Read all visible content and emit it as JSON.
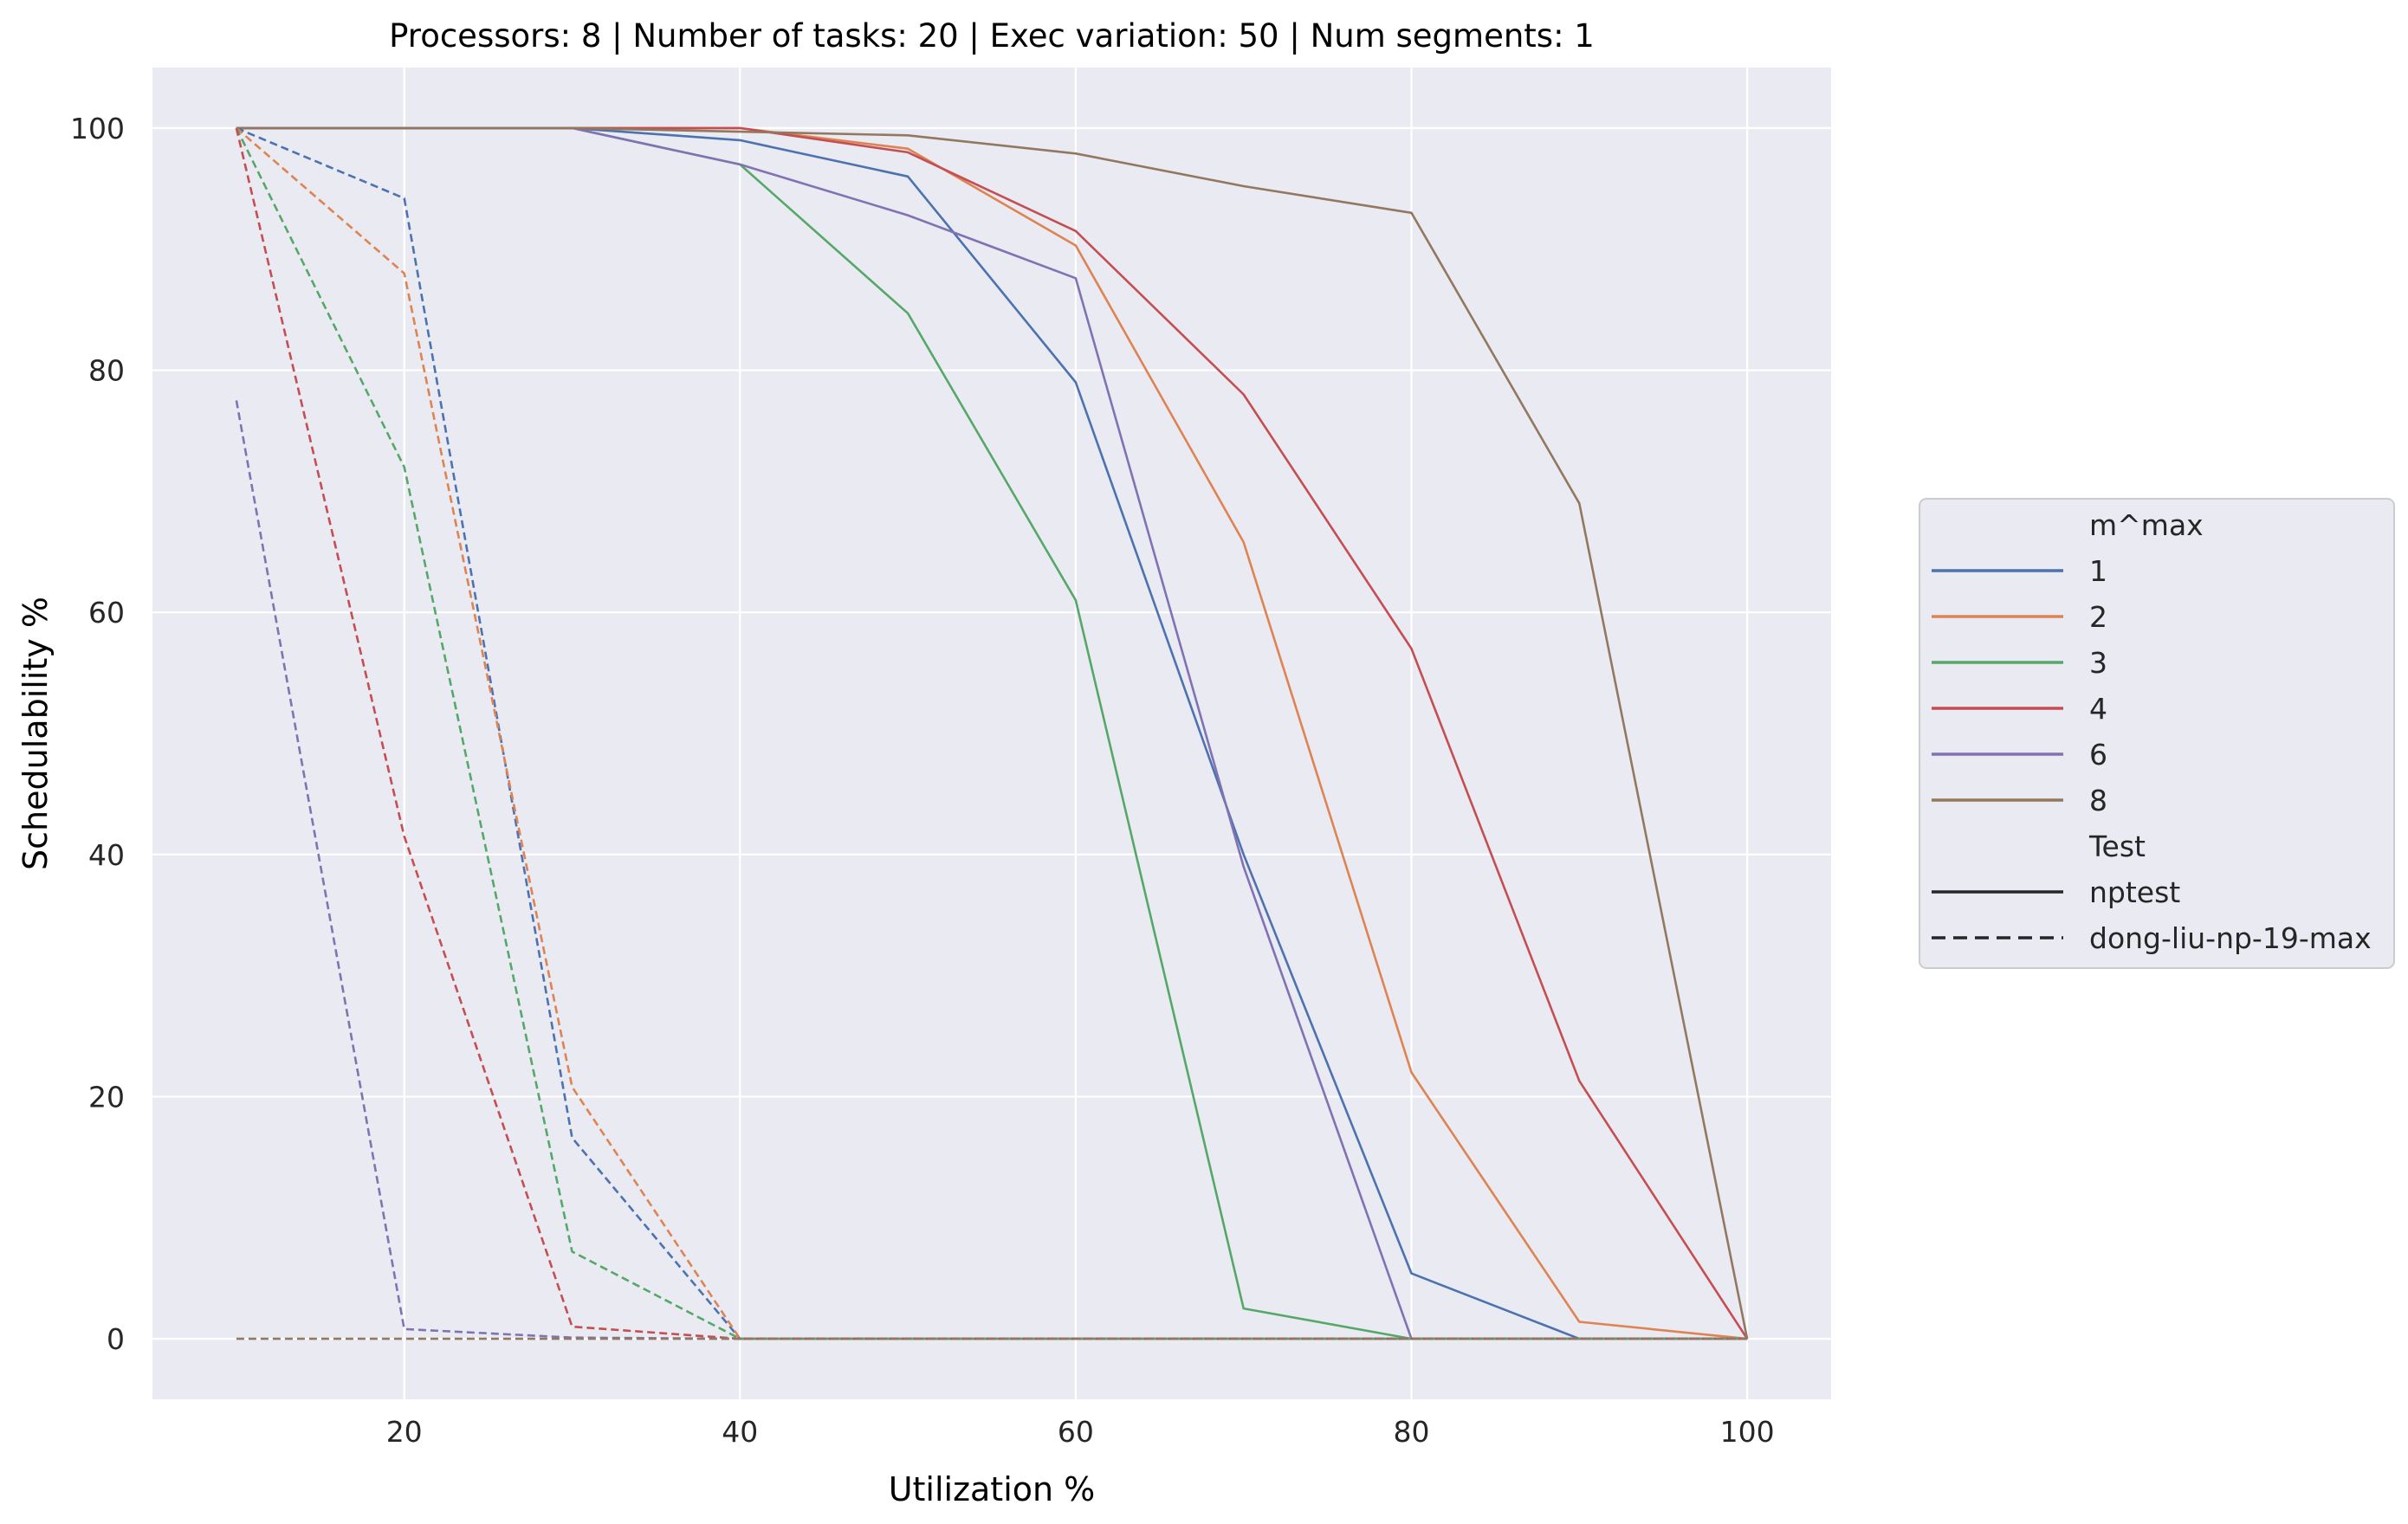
{
  "chart_data": {
    "type": "line",
    "title": "Processors: 8 | Number of tasks: 20 | Exec variation: 50 | Num segments: 1",
    "xlabel": "Utilization %",
    "ylabel": "Schedulability %",
    "xlim": [
      5,
      105
    ],
    "ylim": [
      -5,
      105
    ],
    "xticks": [
      20,
      40,
      60,
      80,
      100
    ],
    "yticks": [
      0,
      20,
      40,
      60,
      80,
      100
    ],
    "grid": true,
    "legend_position": "right",
    "legend": {
      "hue_title": "m^max",
      "style_title": "Test",
      "hue_entries": [
        "1",
        "2",
        "3",
        "4",
        "6",
        "8"
      ],
      "style_entries": [
        "nptest",
        "dong-liu-np-19-max"
      ]
    },
    "colors": {
      "1": "#4c72b0",
      "2": "#dd8452",
      "3": "#55a868",
      "4": "#c44e52",
      "6": "#8172b3",
      "8": "#937860",
      "background": "#eaeaf2",
      "grid": "#ffffff",
      "style_legend": "#262626"
    },
    "x": [
      10,
      20,
      30,
      40,
      50,
      60,
      70,
      80,
      90,
      100
    ],
    "series": [
      {
        "m": "1",
        "test": "nptest",
        "values": [
          100,
          100,
          100,
          99,
          96,
          79,
          40,
          5.4,
          0,
          0
        ]
      },
      {
        "m": "2",
        "test": "nptest",
        "values": [
          100,
          100,
          100,
          100,
          98.3,
          90.3,
          65.8,
          22,
          1.4,
          0
        ]
      },
      {
        "m": "3",
        "test": "nptest",
        "values": [
          100,
          100,
          100,
          97,
          84.7,
          61,
          2.5,
          0,
          0,
          0
        ]
      },
      {
        "m": "4",
        "test": "nptest",
        "values": [
          100,
          100,
          100,
          100,
          98,
          91.5,
          78,
          57,
          21.3,
          0
        ]
      },
      {
        "m": "6",
        "test": "nptest",
        "values": [
          100,
          100,
          100,
          97,
          92.8,
          87.6,
          39,
          0,
          0,
          0
        ]
      },
      {
        "m": "8",
        "test": "nptest",
        "values": [
          100,
          100,
          100,
          99.7,
          99.4,
          97.9,
          95.2,
          93,
          69,
          0
        ]
      },
      {
        "m": "1",
        "test": "dong-liu-np-19-max",
        "values": [
          100,
          94.2,
          16.6,
          0,
          0,
          0,
          0,
          0,
          0,
          0
        ]
      },
      {
        "m": "2",
        "test": "dong-liu-np-19-max",
        "values": [
          100,
          88,
          20.8,
          0,
          0,
          0,
          0,
          0,
          0,
          0
        ]
      },
      {
        "m": "3",
        "test": "dong-liu-np-19-max",
        "values": [
          100,
          72,
          7.2,
          0,
          0,
          0,
          0,
          0,
          0,
          0
        ]
      },
      {
        "m": "4",
        "test": "dong-liu-np-19-max",
        "values": [
          100,
          41.5,
          1,
          0,
          0,
          0,
          0,
          0,
          0,
          0
        ]
      },
      {
        "m": "6",
        "test": "dong-liu-np-19-max",
        "values": [
          77.5,
          0.8,
          0.1,
          0,
          0,
          0,
          0,
          0,
          0,
          0
        ]
      },
      {
        "m": "8",
        "test": "dong-liu-np-19-max",
        "values": [
          0,
          0,
          0,
          0,
          0,
          0,
          0,
          0,
          0,
          0
        ]
      }
    ]
  }
}
